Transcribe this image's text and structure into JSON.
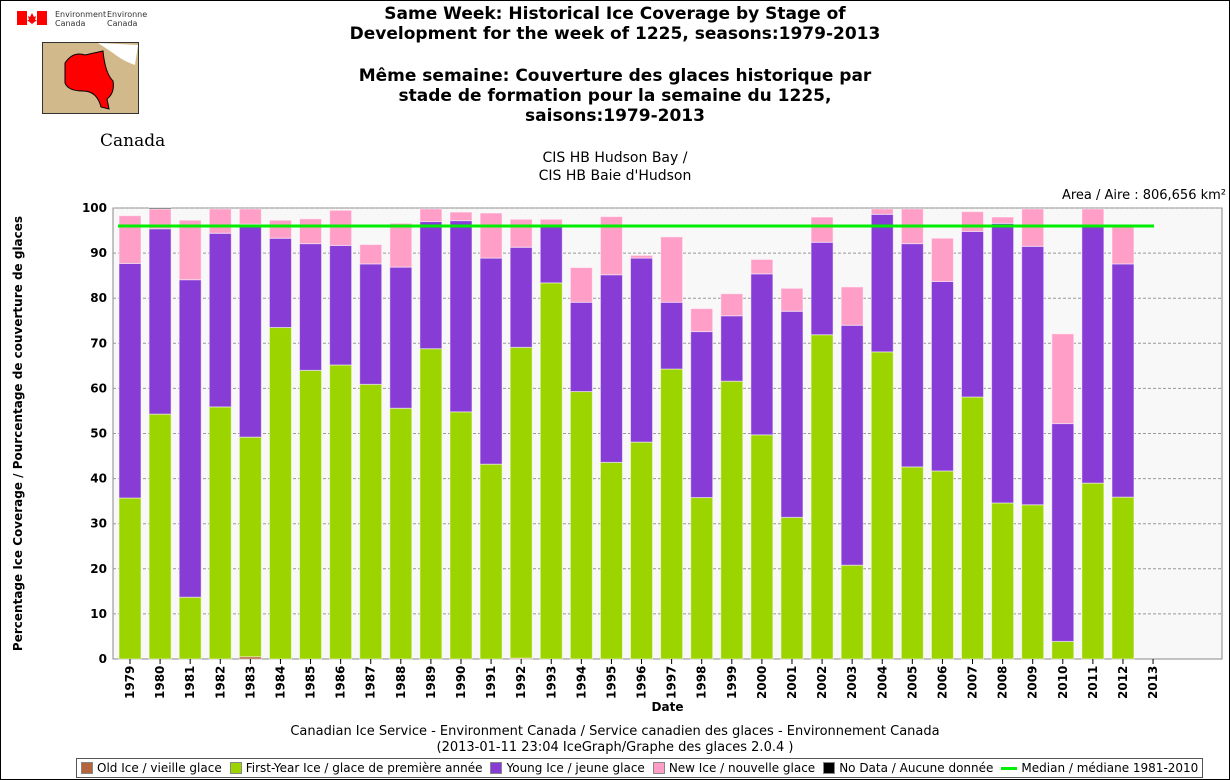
{
  "logo": {
    "dept_en": "Environment Canada",
    "dept_fr": "Environnement Canada",
    "wordmark": "Canada"
  },
  "title_en": [
    "Same Week: Historical Ice Coverage by Stage of",
    "Development for the week of 1225, seasons:1979-2013"
  ],
  "title_fr": [
    "Même semaine: Couverture des glaces historique par",
    "stade de formation pour la semaine du 1225,",
    "saisons:1979-2013"
  ],
  "region": [
    "CIS HB Hudson Bay /",
    "CIS HB Baie d'Hudson"
  ],
  "area": "Area / Aire : 806,656 km²",
  "footer": [
    "Canadian Ice Service - Environment Canada / Service canadien des glaces - Environnement Canada",
    "(2013-01-11 23:04 IceGraph/Graphe des glaces 2.0.4 )"
  ],
  "chart_data": {
    "type": "bar",
    "stacked": true,
    "xlabel": "Date",
    "ylabel": "Percentage Ice Coverage / Pourcentage de couverture de glaces",
    "ylim": [
      0,
      100
    ],
    "yticks": [
      0,
      10,
      20,
      30,
      40,
      50,
      60,
      70,
      80,
      90,
      100
    ],
    "grid": true,
    "legend": "bottom",
    "categories": [
      "1979",
      "1980",
      "1981",
      "1982",
      "1983",
      "1984",
      "1985",
      "1986",
      "1987",
      "1988",
      "1989",
      "1990",
      "1991",
      "1992",
      "1993",
      "1994",
      "1995",
      "1996",
      "1997",
      "1998",
      "1999",
      "2000",
      "2001",
      "2002",
      "2003",
      "2004",
      "2005",
      "2006",
      "2007",
      "2008",
      "2009",
      "2010",
      "2011",
      "2012",
      "2013"
    ],
    "series": [
      {
        "name": "Old Ice / vieille glace",
        "color": "#b5653b",
        "values": [
          0,
          0,
          0,
          0,
          0.5,
          0,
          0,
          0,
          0,
          0,
          0,
          0,
          0,
          0.2,
          0,
          0,
          0,
          0,
          0,
          0,
          0,
          0,
          0,
          0,
          0,
          0,
          0,
          0,
          0,
          0,
          0,
          0,
          0,
          0,
          0
        ]
      },
      {
        "name": "First-Year Ice / glace de première année",
        "color": "#9cd400",
        "values": [
          35.7,
          54.3,
          13.7,
          55.9,
          48.7,
          73.5,
          64.0,
          65.2,
          60.9,
          55.6,
          68.8,
          54.8,
          43.2,
          68.9,
          83.4,
          59.3,
          43.6,
          48.1,
          64.3,
          35.8,
          61.6,
          49.7,
          31.4,
          71.9,
          20.8,
          68.1,
          42.6,
          41.7,
          58.1,
          34.6,
          34.2,
          3.9,
          39.0,
          35.9,
          0
        ]
      },
      {
        "name": "Young Ice / jeune glace",
        "color": "#873cd6",
        "values": [
          52.0,
          41.1,
          70.4,
          38.5,
          47.2,
          19.8,
          28.1,
          26.5,
          26.7,
          31.3,
          28.2,
          42.4,
          45.7,
          22.2,
          12.7,
          19.8,
          41.6,
          40.8,
          14.8,
          36.8,
          14.5,
          35.7,
          45.7,
          20.5,
          53.2,
          30.5,
          49.5,
          42.0,
          36.7,
          62.0,
          57.3,
          48.3,
          57.0,
          51.7,
          0
        ]
      },
      {
        "name": "New Ice / nouvelle glace",
        "color": "#ff9fc8",
        "values": [
          10.6,
          4.4,
          13.2,
          5.4,
          3.4,
          4.0,
          5.5,
          7.8,
          4.3,
          9.7,
          2.8,
          1.9,
          10.0,
          6.2,
          1.4,
          7.7,
          12.9,
          0.6,
          14.5,
          5.1,
          4.9,
          3.2,
          5.1,
          5.6,
          8.5,
          1.2,
          7.7,
          9.6,
          4.4,
          1.4,
          8.3,
          19.9,
          3.8,
          8.4,
          0
        ]
      },
      {
        "name": "No Data / Aucune donnée",
        "color": "#000000",
        "values": [
          0,
          0.2,
          0,
          0,
          0,
          0,
          0,
          0,
          0,
          0,
          0,
          0,
          0,
          0,
          0,
          0,
          0,
          0,
          0,
          0,
          0,
          0,
          0,
          0,
          0,
          0,
          0,
          0,
          0,
          0,
          0,
          0,
          0,
          0,
          0
        ]
      }
    ],
    "median": {
      "name": "Median / médiane 1981-2010",
      "color": "#00ee00",
      "value": 96
    }
  }
}
